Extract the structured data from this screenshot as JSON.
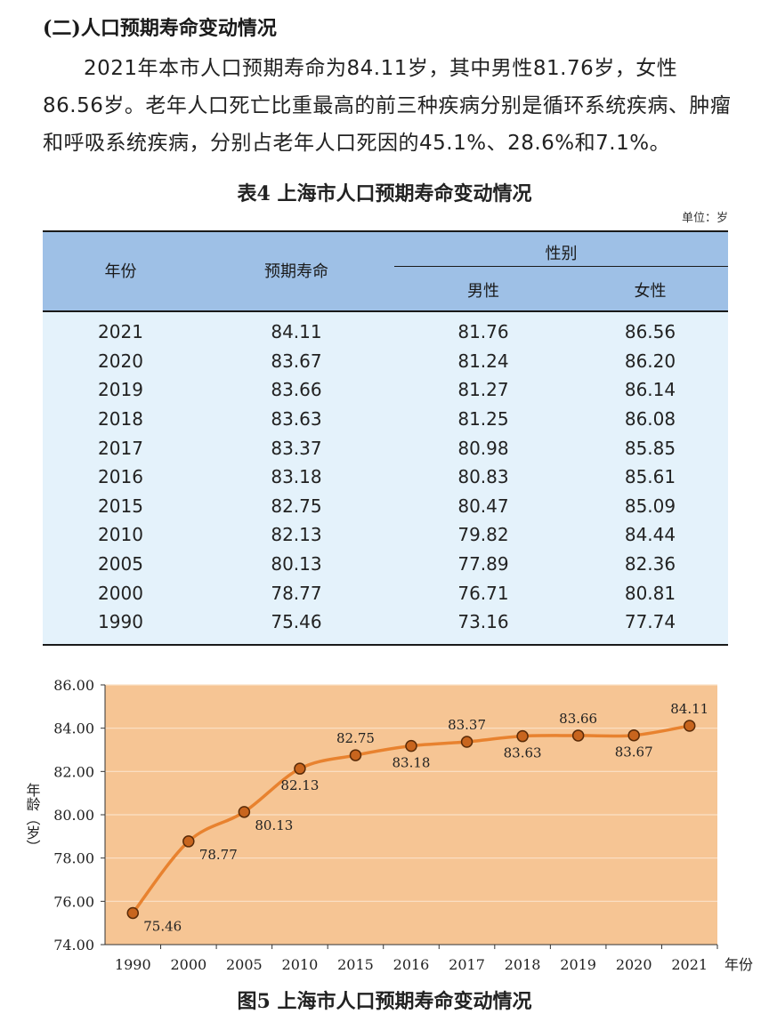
{
  "section": {
    "title": "(二)人口预期寿命变动情况",
    "paragraph": "2021年本市人口预期寿命为84.11岁，其中男性81.76岁，女性86.56岁。老年人口死亡比重最高的前三种疾病分别是循环系统疾病、肿瘤和呼吸系统疾病，分别占老年人口死因的45.1%、28.6%和7.1%。"
  },
  "table": {
    "title": "表4  上海市人口预期寿命变动情况",
    "unit": "单位：岁",
    "headers": {
      "year": "年份",
      "life": "预期寿命",
      "gender": "性别",
      "male": "男性",
      "female": "女性"
    },
    "rows": [
      [
        "2021",
        "84.11",
        "81.76",
        "86.56"
      ],
      [
        "2020",
        "83.67",
        "81.24",
        "86.20"
      ],
      [
        "2019",
        "83.66",
        "81.27",
        "86.14"
      ],
      [
        "2018",
        "83.63",
        "81.25",
        "86.08"
      ],
      [
        "2017",
        "83.37",
        "80.98",
        "85.85"
      ],
      [
        "2016",
        "83.18",
        "80.83",
        "85.61"
      ],
      [
        "2015",
        "82.75",
        "80.47",
        "85.09"
      ],
      [
        "2010",
        "82.13",
        "79.82",
        "84.44"
      ],
      [
        "2005",
        "80.13",
        "77.89",
        "82.36"
      ],
      [
        "2000",
        "78.77",
        "76.71",
        "80.81"
      ],
      [
        "1990",
        "75.46",
        "73.16",
        "77.74"
      ]
    ]
  },
  "figure": {
    "title": "图5  上海市人口预期寿命变动情况"
  },
  "chart_data": {
    "type": "line",
    "categories": [
      "1990",
      "2000",
      "2005",
      "2010",
      "2015",
      "2016",
      "2017",
      "2018",
      "2019",
      "2020",
      "2021"
    ],
    "values": [
      75.46,
      78.77,
      80.13,
      82.13,
      82.75,
      83.18,
      83.37,
      83.63,
      83.66,
      83.67,
      84.11
    ],
    "data_labels": [
      "75.46",
      "78.77",
      "80.13",
      "82.13",
      "82.75",
      "83.18",
      "83.37",
      "83.63",
      "83.66",
      "83.67",
      "84.11"
    ],
    "yticks": [
      "74.00",
      "76.00",
      "78.00",
      "80.00",
      "82.00",
      "84.00",
      "86.00"
    ],
    "ylim": [
      74,
      86
    ],
    "xlabel": "年份",
    "ylabel": "年龄（岁）",
    "grid": true,
    "colors": {
      "plot_bg": "#f6c594",
      "line": "#e8822f",
      "marker": "#c8651e",
      "grid": "#fbe2c8"
    }
  }
}
